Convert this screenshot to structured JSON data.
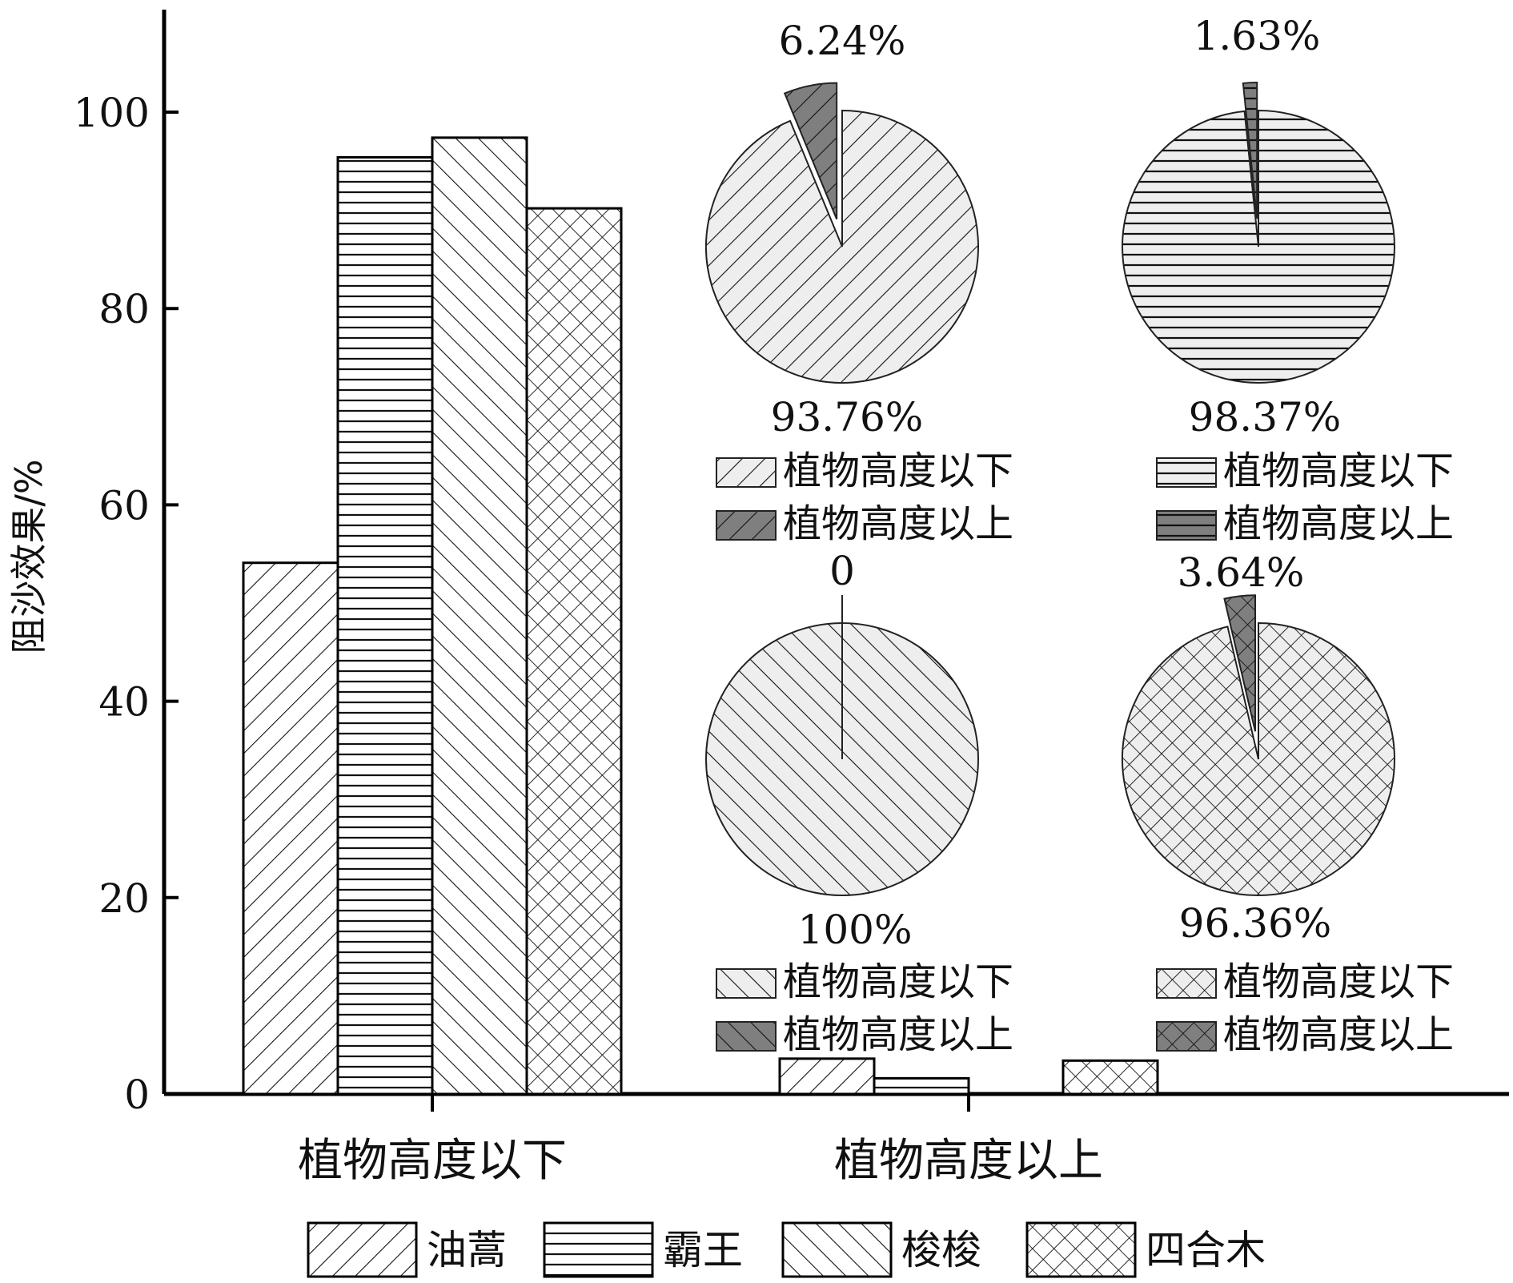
{
  "chart_data": [
    {
      "type": "bar",
      "ylabel": "阻沙效果/%",
      "ylim": [
        0,
        110
      ],
      "yticks": [
        0,
        20,
        40,
        60,
        80,
        100
      ],
      "categories": [
        "植物高度以下",
        "植物高度以上"
      ],
      "series": [
        {
          "name": "油蒿",
          "values": [
            54.1,
            3.6
          ],
          "pattern": "diag-up"
        },
        {
          "name": "霸王",
          "values": [
            95.4,
            1.6
          ],
          "pattern": "horizontal"
        },
        {
          "name": "梭梭",
          "values": [
            97.4,
            0
          ],
          "pattern": "diag-down"
        },
        {
          "name": "四合木",
          "values": [
            90.2,
            3.4
          ],
          "pattern": "crosshatch"
        }
      ],
      "legend_position": "bottom"
    },
    {
      "type": "pie",
      "species": "油蒿",
      "slices": [
        {
          "label": "植物高度以下",
          "value": 93.76,
          "text": "93.76%",
          "pattern": "diag-up",
          "fill": "#eeeeee"
        },
        {
          "label": "植物高度以上",
          "value": 6.24,
          "text": "6.24%",
          "pattern": "diag-up",
          "fill": "#7f7f7f"
        }
      ],
      "legend": [
        "植物高度以下",
        "植物高度以上"
      ]
    },
    {
      "type": "pie",
      "species": "霸王",
      "slices": [
        {
          "label": "植物高度以下",
          "value": 98.37,
          "text": "98.37%",
          "pattern": "horizontal",
          "fill": "#eeeeee"
        },
        {
          "label": "植物高度以上",
          "value": 1.63,
          "text": "1.63%",
          "pattern": "horizontal",
          "fill": "#7f7f7f"
        }
      ],
      "legend": [
        "植物高度以下",
        "植物高度以上"
      ]
    },
    {
      "type": "pie",
      "species": "梭梭",
      "slices": [
        {
          "label": "植物高度以下",
          "value": 100,
          "text": "100%",
          "pattern": "diag-down",
          "fill": "#eeeeee"
        },
        {
          "label": "植物高度以上",
          "value": 0,
          "text": "0",
          "pattern": "diag-down",
          "fill": "#7f7f7f"
        }
      ],
      "legend": [
        "植物高度以下",
        "植物高度以上"
      ]
    },
    {
      "type": "pie",
      "species": "四合木",
      "slices": [
        {
          "label": "植物高度以下",
          "value": 96.36,
          "text": "96.36%",
          "pattern": "crosshatch",
          "fill": "#eeeeee"
        },
        {
          "label": "植物高度以上",
          "value": 3.64,
          "text": "3.64%",
          "pattern": "crosshatch",
          "fill": "#7f7f7f"
        }
      ],
      "legend": [
        "植物高度以下",
        "植物高度以上"
      ]
    }
  ]
}
